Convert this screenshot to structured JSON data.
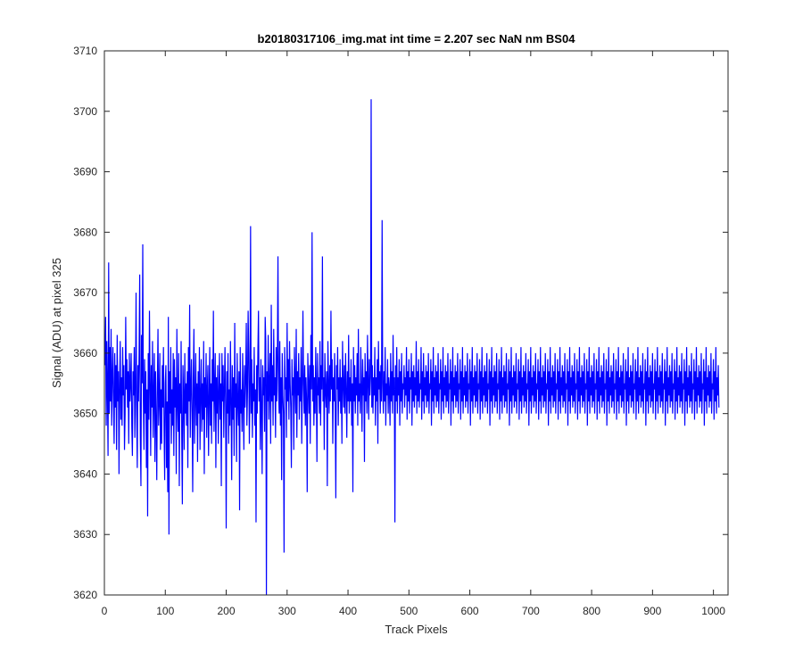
{
  "chart_data": {
    "type": "line",
    "title": "b20180317106_img.mat int time = 2.207 sec  NaN nm BS04",
    "xlabel": "Track Pixels",
    "ylabel": "Signal (ADU) at pixel 325",
    "xlim": [
      0,
      1024
    ],
    "ylim": [
      3620,
      3710
    ],
    "xticks": [
      0,
      100,
      200,
      300,
      400,
      500,
      600,
      700,
      800,
      900,
      1000
    ],
    "yticks": [
      3620,
      3630,
      3640,
      3650,
      3660,
      3670,
      3680,
      3690,
      3700,
      3710
    ],
    "grid": false,
    "line_color": "#0000ff",
    "series": [
      {
        "x_start": 1,
        "x_step": 1,
        "values": [
          3658,
          3666,
          3648,
          3662,
          3654,
          3643,
          3675,
          3650,
          3661,
          3652,
          3664,
          3648,
          3656,
          3661,
          3652,
          3645,
          3660,
          3651,
          3658,
          3644,
          3663,
          3652,
          3657,
          3640,
          3655,
          3662,
          3649,
          3656,
          3648,
          3661,
          3653,
          3658,
          3644,
          3650,
          3666,
          3654,
          3659,
          3651,
          3657,
          3645,
          3660,
          3652,
          3655,
          3660,
          3648,
          3643,
          3657,
          3653,
          3661,
          3646,
          3654,
          3670,
          3650,
          3641,
          3658,
          3652,
          3660,
          3673,
          3646,
          3638,
          3663,
          3655,
          3678,
          3652,
          3644,
          3659,
          3650,
          3657,
          3641,
          3654,
          3633,
          3660,
          3649,
          3667,
          3655,
          3643,
          3658,
          3651,
          3662,
          3646,
          3653,
          3660,
          3642,
          3657,
          3649,
          3639,
          3655,
          3664,
          3648,
          3652,
          3660,
          3644,
          3654,
          3645,
          3658,
          3651,
          3661,
          3647,
          3639,
          3655,
          3658,
          3641,
          3652,
          3637,
          3666,
          3630,
          3657,
          3650,
          3661,
          3645,
          3654,
          3648,
          3660,
          3643,
          3659,
          3651,
          3656,
          3640,
          3664,
          3652,
          3647,
          3660,
          3638,
          3655,
          3650,
          3662,
          3646,
          3635,
          3658,
          3653,
          3644,
          3660,
          3650,
          3655,
          3648,
          3657,
          3641,
          3661,
          3652,
          3668,
          3646,
          3654,
          3659,
          3650,
          3637,
          3656,
          3664,
          3645,
          3652,
          3660,
          3648,
          3655,
          3642,
          3657,
          3650,
          3661,
          3644,
          3653,
          3659,
          3647,
          3655,
          3649,
          3662,
          3640,
          3656,
          3651,
          3660,
          3646,
          3654,
          3658,
          3643,
          3652,
          3661,
          3648,
          3655,
          3645,
          3659,
          3652,
          3667,
          3647,
          3654,
          3660,
          3641,
          3656,
          3650,
          3658,
          3645,
          3653,
          3660,
          3649,
          3655,
          3638,
          3660,
          3652,
          3658,
          3646,
          3654,
          3661,
          3651,
          3631,
          3657,
          3650,
          3660,
          3645,
          3654,
          3648,
          3662,
          3652,
          3639,
          3658,
          3649,
          3656,
          3643,
          3665,
          3651,
          3655,
          3642,
          3660,
          3652,
          3648,
          3657,
          3634,
          3661,
          3650,
          3654,
          3647,
          3660,
          3652,
          3644,
          3658,
          3651,
          3656,
          3665,
          3648,
          3654,
          3667,
          3660,
          3645,
          3653,
          3681,
          3650,
          3659,
          3646,
          3655,
          3652,
          3661,
          3648,
          3654,
          3632,
          3658,
          3650,
          3660,
          3667,
          3652,
          3656,
          3644,
          3659,
          3651,
          3640,
          3658,
          3653,
          3656,
          3647,
          3666,
          3662,
          3620,
          3657,
          3652,
          3663,
          3649,
          3655,
          3660,
          3645,
          3668,
          3652,
          3658,
          3648,
          3664,
          3653,
          3656,
          3646,
          3661,
          3652,
          3659,
          3676,
          3654,
          3650,
          3662,
          3648,
          3656,
          3639,
          3660,
          3653,
          3650,
          3627,
          3661,
          3654,
          3656,
          3646,
          3665,
          3652,
          3659,
          3649,
          3662,
          3655,
          3651,
          3641,
          3659,
          3653,
          3656,
          3644,
          3661,
          3655,
          3650,
          3664,
          3646,
          3657,
          3653,
          3660,
          3649,
          3656,
          3652,
          3661,
          3645,
          3654,
          3667,
          3655,
          3650,
          3658,
          3648,
          3656,
          3652,
          3637,
          3660,
          3655,
          3650,
          3658,
          3645,
          3663,
          3654,
          3680,
          3652,
          3658,
          3648,
          3656,
          3650,
          3661,
          3654,
          3642,
          3660,
          3653,
          3656,
          3650,
          3662,
          3648,
          3658,
          3654,
          3676,
          3652,
          3656,
          3644,
          3660,
          3654,
          3651,
          3657,
          3638,
          3662,
          3655,
          3650,
          3658,
          3652,
          3667,
          3654,
          3659,
          3645,
          3656,
          3652,
          3660,
          3650,
          3636,
          3658,
          3654,
          3661,
          3648,
          3656,
          3652,
          3659,
          3650,
          3656,
          3645,
          3662,
          3655,
          3651,
          3658,
          3650,
          3660,
          3654,
          3646,
          3657,
          3652,
          3663,
          3650,
          3656,
          3652,
          3659,
          3648,
          3655,
          3637,
          3661,
          3652,
          3658,
          3650,
          3656,
          3653,
          3660,
          3648,
          3664,
          3652,
          3655,
          3650,
          3661,
          3654,
          3647,
          3659,
          3653,
          3656,
          3642,
          3660,
          3652,
          3657,
          3650,
          3663,
          3655,
          3649,
          3659,
          3653,
          3656,
          3702,
          3651,
          3658,
          3650,
          3656,
          3653,
          3661,
          3648,
          3656,
          3652,
          3659,
          3645,
          3662,
          3654,
          3657,
          3650,
          3658,
          3652,
          3682,
          3655,
          3650,
          3657,
          3652,
          3661,
          3648,
          3655,
          3653,
          3659,
          3650,
          3656,
          3654,
          3648,
          3660,
          3652,
          3657,
          3650,
          3663,
          3653,
          3656,
          3632,
          3658,
          3652,
          3661,
          3650,
          3656,
          3653,
          3659,
          3648,
          3657,
          3652,
          3660,
          3650,
          3655,
          3654,
          3658,
          3651,
          3656,
          3653,
          3661,
          3649,
          3657,
          3652,
          3659,
          3650,
          3656,
          3654,
          3660,
          3648,
          3657,
          3652,
          3658,
          3651,
          3656,
          3653,
          3662,
          3650,
          3657,
          3652,
          3659,
          3651,
          3655,
          3654,
          3661,
          3649,
          3657,
          3652,
          3660,
          3650,
          3656,
          3653,
          3658,
          3651,
          3657,
          3652,
          3660,
          3650,
          3655,
          3654,
          3659,
          3648,
          3657,
          3652,
          3661,
          3650,
          3656,
          3653,
          3658,
          3651,
          3657,
          3652,
          3660,
          3650,
          3655,
          3654,
          3659,
          3649,
          3657,
          3652,
          3661,
          3650,
          3656,
          3653,
          3658,
          3651,
          3657,
          3652,
          3660,
          3650,
          3655,
          3654,
          3659,
          3648,
          3657,
          3652,
          3661,
          3650,
          3656,
          3653,
          3658,
          3651,
          3657,
          3652,
          3660,
          3650,
          3655,
          3654,
          3659,
          3649,
          3657,
          3652,
          3661,
          3650,
          3656,
          3653,
          3658,
          3651,
          3657,
          3652,
          3660,
          3650,
          3655,
          3654,
          3659,
          3648,
          3657,
          3652,
          3661,
          3650,
          3656,
          3653,
          3658,
          3651,
          3657,
          3652,
          3660,
          3650,
          3655,
          3654,
          3659,
          3649,
          3657,
          3652,
          3661,
          3650,
          3656,
          3653,
          3658,
          3651,
          3657,
          3652,
          3660,
          3650,
          3655,
          3654,
          3659,
          3648,
          3657,
          3652,
          3661,
          3650,
          3656,
          3653,
          3658,
          3651,
          3657,
          3652,
          3660,
          3650,
          3655,
          3654,
          3659,
          3649,
          3657,
          3652,
          3661,
          3650,
          3656,
          3653,
          3658,
          3651,
          3657,
          3652,
          3660,
          3650,
          3655,
          3654,
          3659,
          3648,
          3657,
          3652,
          3661,
          3650,
          3656,
          3653,
          3658,
          3651,
          3657,
          3652,
          3660,
          3650,
          3655,
          3654,
          3659,
          3649,
          3657,
          3652,
          3661,
          3650,
          3656,
          3653,
          3658,
          3651,
          3657,
          3652,
          3660,
          3650,
          3655,
          3654,
          3659,
          3648,
          3657,
          3652,
          3661,
          3650,
          3656,
          3653,
          3658,
          3651,
          3657,
          3652,
          3660,
          3650,
          3655,
          3654,
          3659,
          3649,
          3657,
          3652,
          3661,
          3650,
          3656,
          3653,
          3658,
          3651,
          3657,
          3652,
          3660,
          3650,
          3655,
          3654,
          3659,
          3648,
          3657,
          3652,
          3661,
          3650,
          3656,
          3653,
          3658,
          3651,
          3657,
          3652,
          3660,
          3650,
          3655,
          3654,
          3659,
          3649,
          3657,
          3652,
          3661,
          3650,
          3656,
          3653,
          3658,
          3651,
          3657,
          3652,
          3660,
          3650,
          3655,
          3654,
          3659,
          3648,
          3657,
          3652,
          3661,
          3650,
          3656,
          3653,
          3658,
          3651,
          3657,
          3652,
          3660,
          3650,
          3655,
          3654,
          3659,
          3649,
          3657,
          3652,
          3661,
          3650,
          3656,
          3653,
          3658,
          3651,
          3657,
          3652,
          3660,
          3650,
          3655,
          3654,
          3659,
          3648,
          3657,
          3652,
          3661,
          3650,
          3656,
          3653,
          3658,
          3651,
          3657,
          3652,
          3660,
          3650,
          3655,
          3654,
          3659,
          3649,
          3657,
          3652,
          3661,
          3650,
          3656,
          3653,
          3658,
          3651,
          3657,
          3652,
          3660,
          3650,
          3655,
          3654,
          3659,
          3648,
          3657,
          3652,
          3661,
          3650,
          3656,
          3653,
          3658,
          3651,
          3657,
          3652,
          3660,
          3650,
          3655,
          3654,
          3659,
          3649,
          3657,
          3652,
          3661,
          3650,
          3656,
          3653,
          3658,
          3651,
          3657,
          3652,
          3660,
          3650,
          3655,
          3654,
          3659,
          3648,
          3657,
          3652,
          3661,
          3650,
          3656,
          3653,
          3658,
          3651,
          3657,
          3652,
          3660,
          3650,
          3655,
          3654,
          3659,
          3649,
          3657,
          3652,
          3661,
          3650,
          3656,
          3653,
          3658,
          3651,
          3657,
          3652,
          3660,
          3650,
          3655,
          3654,
          3659,
          3648,
          3657,
          3652,
          3661,
          3650,
          3656,
          3653,
          3658,
          3651,
          3657,
          3652,
          3660,
          3650,
          3655,
          3654,
          3659,
          3649,
          3657,
          3652,
          3661,
          3650,
          3656,
          3653,
          3658,
          3651,
          3657,
          3652,
          3660,
          3650,
          3655,
          3654,
          3659,
          3648,
          3657,
          3652,
          3661,
          3650,
          3656,
          3653,
          3658,
          3651,
          3657,
          3652,
          3660,
          3650,
          3655,
          3654,
          3659,
          3649,
          3657,
          3652,
          3661,
          3650,
          3656,
          3653,
          3658,
          3651,
          3657,
          3652,
          3660,
          3650,
          3655,
          3654,
          3659,
          3648,
          3657,
          3652,
          3661,
          3650,
          3656,
          3653,
          3658,
          3651,
          3657,
          3652,
          3660,
          3650,
          3655,
          3654,
          3659,
          3649,
          3657,
          3652,
          3661,
          3650,
          3656,
          3653,
          3658,
          3651,
          3657,
          3652,
          3660,
          3650,
          3655,
          3654,
          3659,
          3648,
          3657,
          3652,
          3661,
          3650,
          3656,
          3653,
          3658,
          3651,
          3657,
          3652,
          3660,
          3650,
          3655,
          3654,
          3659,
          3649,
          3657,
          3652,
          3661,
          3650,
          3656,
          3653,
          3658,
          3651
        ]
      }
    ]
  }
}
